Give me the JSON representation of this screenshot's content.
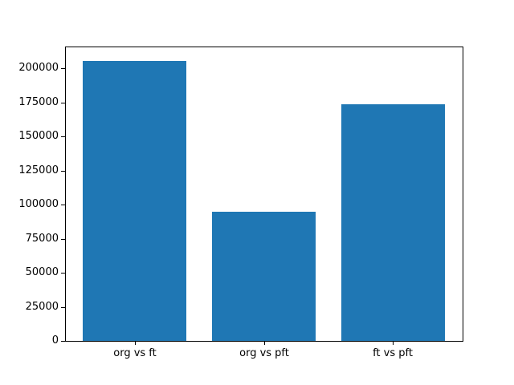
{
  "figure": {
    "background_color": "#ffffff",
    "bar_color": "#1f77b4",
    "spine_color": "#000000",
    "text_color": "#000000"
  },
  "chart_data": {
    "type": "bar",
    "title": "",
    "xlabel": "",
    "ylabel": "",
    "categories": [
      "org vs ft",
      "org vs pft",
      "ft vs pft"
    ],
    "values": [
      206000,
      95000,
      174000
    ],
    "ylim": [
      0,
      215900
    ],
    "yticks": [
      0,
      25000,
      50000,
      75000,
      100000,
      125000,
      150000,
      175000,
      200000
    ],
    "xlim": [
      -0.54,
      2.54
    ],
    "bar_width": 0.8,
    "grid": false,
    "legend": false
  }
}
